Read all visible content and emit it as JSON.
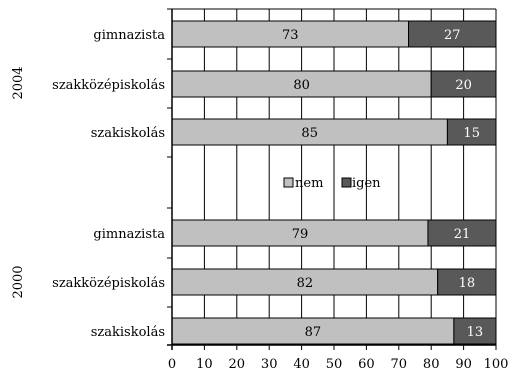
{
  "chart_data": {
    "type": "bar",
    "orientation": "horizontal",
    "stacked": true,
    "groups": [
      {
        "name": "2004",
        "categories": [
          "gimnazista",
          "szakközépiskolás",
          "szakiskolás"
        ],
        "series": [
          {
            "name": "nem",
            "values": [
              73,
              80,
              85
            ]
          },
          {
            "name": "igen",
            "values": [
              27,
              20,
              15
            ]
          }
        ]
      },
      {
        "name": "2000",
        "categories": [
          "gimnazista",
          "szakközépiskolás",
          "szakiskolás"
        ],
        "series": [
          {
            "name": "nem",
            "values": [
              79,
              82,
              87
            ]
          },
          {
            "name": "igen",
            "values": [
              21,
              18,
              13
            ]
          }
        ]
      }
    ],
    "xlim": [
      0,
      100
    ],
    "xticks": [
      "0",
      "10",
      "20",
      "30",
      "40",
      "50",
      "60",
      "70",
      "80",
      "90",
      "100"
    ],
    "grid": true,
    "legend": {
      "position": "center",
      "entries": [
        "nem",
        "igen"
      ]
    },
    "colors": {
      "nem": "#c0c0c0",
      "igen": "#595959"
    },
    "title": "",
    "xlabel": "",
    "ylabel": ""
  }
}
